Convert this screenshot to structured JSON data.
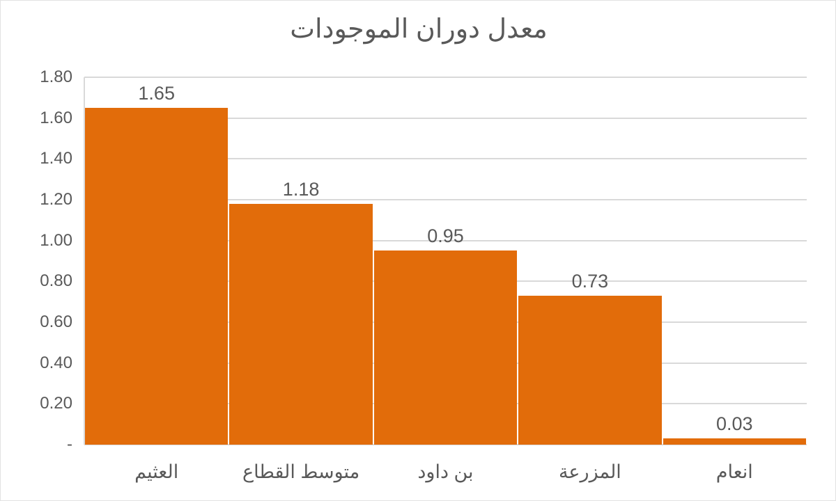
{
  "window": {
    "background": "#ffffff",
    "border_color": "#e2e2e2"
  },
  "colors": {
    "bar": "#e26c0a",
    "text": "#595959",
    "gridline": "#d9d9d9"
  },
  "chart_data": {
    "type": "bar",
    "title": "معدل دوران الموجودات",
    "categories": [
      "العثيم",
      "متوسط القطاع",
      "بن داود",
      "المزرعة",
      "انعام"
    ],
    "values": [
      1.65,
      1.18,
      0.95,
      0.73,
      0.03
    ],
    "data_labels": [
      "1.65",
      "1.18",
      "0.95",
      "0.73",
      "0.03"
    ],
    "series_name": "",
    "xlabel": "",
    "ylabel": "",
    "ylim": [
      0,
      1.8
    ],
    "y_tick_step": 0.2,
    "y_ticks": [
      {
        "label": "1.80",
        "value": 1.8
      },
      {
        "label": "1.60",
        "value": 1.6
      },
      {
        "label": "1.40",
        "value": 1.4
      },
      {
        "label": "1.20",
        "value": 1.2
      },
      {
        "label": "1.00",
        "value": 1.0
      },
      {
        "label": "0.80",
        "value": 0.8
      },
      {
        "label": "0.60",
        "value": 0.6
      },
      {
        "label": "0.40",
        "value": 0.4
      },
      {
        "label": "0.20",
        "value": 0.2
      },
      {
        "label": "-",
        "value": 0
      }
    ],
    "grid": true,
    "legend": "none",
    "bar_color": "#e26c0a",
    "text_direction": "rtl"
  }
}
